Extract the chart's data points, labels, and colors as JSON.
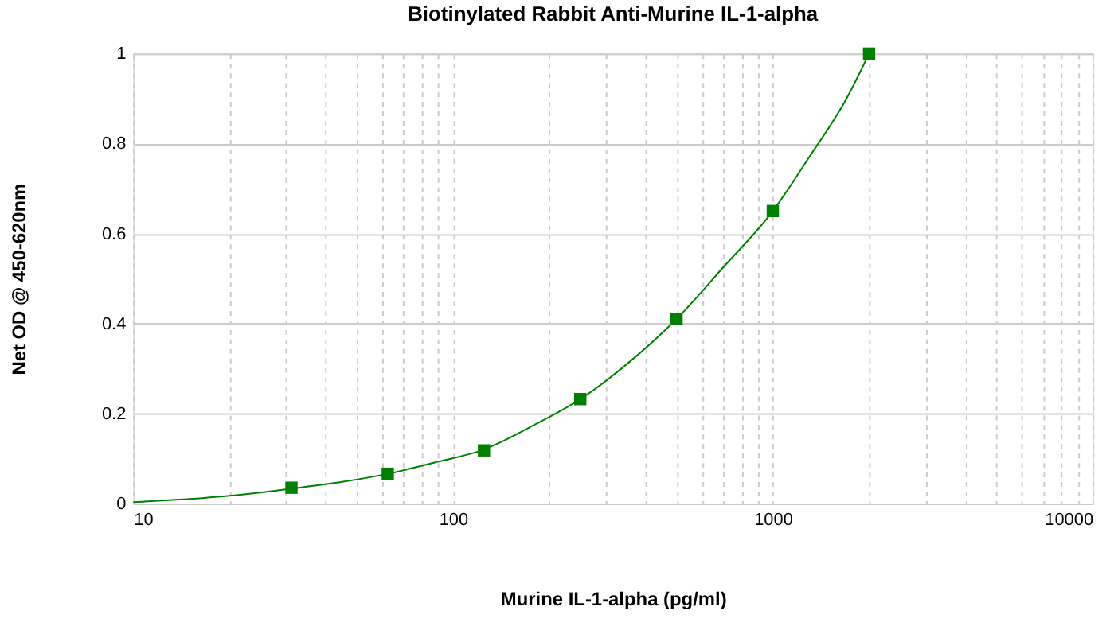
{
  "chart_data": {
    "type": "scatter",
    "title": "Biotinylated Rabbit Anti-Murine IL-1-alpha",
    "xlabel": "Murine IL-1-alpha (pg/ml)",
    "ylabel": "Net OD @ 450-620nm",
    "log": "x",
    "grid": true,
    "marker": "square",
    "xlim": [
      10,
      10000
    ],
    "ylim": [
      0,
      1
    ],
    "xticks": [
      10,
      {
        "value": 20,
        "label": null
      },
      {
        "value": 30,
        "label": null
      },
      {
        "value": 40,
        "label": null
      },
      {
        "value": 50,
        "label": null
      },
      {
        "value": 60,
        "label": null
      },
      {
        "value": 70,
        "label": null
      },
      {
        "value": 80,
        "label": null
      },
      {
        "value": 90,
        "label": null
      },
      100,
      {
        "value": 200,
        "label": null
      },
      {
        "value": 300,
        "label": null
      },
      {
        "value": 400,
        "label": null
      },
      {
        "value": 500,
        "label": null
      },
      {
        "value": 600,
        "label": null
      },
      {
        "value": 700,
        "label": null
      },
      {
        "value": 800,
        "label": null
      },
      {
        "value": 900,
        "label": null
      },
      1000,
      {
        "value": 2000,
        "label": null
      },
      {
        "value": 3000,
        "label": null
      },
      {
        "value": 4000,
        "label": null
      },
      {
        "value": 5000,
        "label": null
      },
      {
        "value": 6000,
        "label": null
      },
      {
        "value": 7000,
        "label": null
      },
      {
        "value": 8000,
        "label": null
      },
      {
        "value": 9000,
        "label": null
      },
      10000
    ],
    "yticks": [
      0,
      0.2,
      0.4,
      0.6,
      0.8,
      1
    ],
    "series": [
      {
        "type": "line",
        "marker": "none",
        "color": "#008000",
        "x": [
          10,
          15,
          20,
          31.25,
          45,
          62.5,
          90,
          125,
          180,
          250,
          350,
          500,
          700,
          1000,
          1300,
          1700,
          2000
        ],
        "values": [
          0.003,
          0.01,
          0.017,
          0.033,
          0.048,
          0.066,
          0.093,
          0.12,
          0.175,
          0.232,
          0.31,
          0.41,
          0.525,
          0.65,
          0.77,
          0.9,
          1.0
        ]
      },
      {
        "color": "#008000",
        "x": [
          31.25,
          62.5,
          125,
          250,
          500,
          1000,
          2000
        ],
        "values": [
          0.035,
          0.066,
          0.118,
          0.232,
          0.41,
          0.65,
          1.0
        ]
      }
    ]
  }
}
